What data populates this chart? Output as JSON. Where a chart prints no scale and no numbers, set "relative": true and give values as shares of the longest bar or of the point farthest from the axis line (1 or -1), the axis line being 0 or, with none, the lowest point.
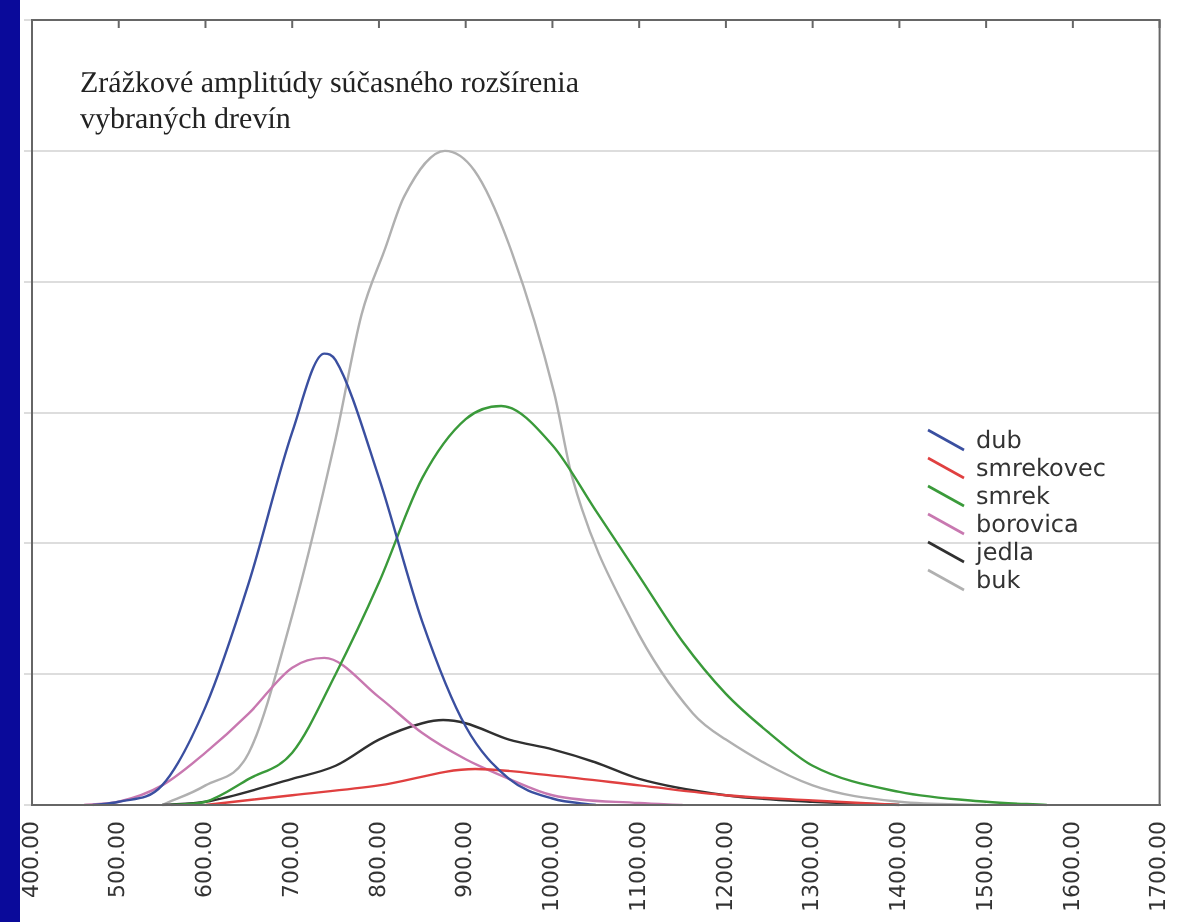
{
  "chart_data": {
    "type": "line",
    "title": "Zrážkové amplitúdy súčasného rozšírenia vybraných drevín",
    "relative": true,
    "xlim": [
      400,
      1700
    ],
    "xticks": [
      {
        "value": 400,
        "label": "400.00"
      },
      {
        "value": 500,
        "label": "500.00"
      },
      {
        "value": 600,
        "label": "600.00"
      },
      {
        "value": 700,
        "label": "700.00"
      },
      {
        "value": 800,
        "label": "800.00"
      },
      {
        "value": 900,
        "label": "900.00"
      },
      {
        "value": 1000,
        "label": "1000.00"
      },
      {
        "value": 1100,
        "label": "1100.00"
      },
      {
        "value": 1200,
        "label": "1200.00"
      },
      {
        "value": 1300,
        "label": "1300.00"
      },
      {
        "value": 1400,
        "label": "1400.00"
      },
      {
        "value": 1500,
        "label": "1500.00"
      },
      {
        "value": 1600,
        "label": "1600.00"
      },
      {
        "value": 1700,
        "label": "1700.00"
      }
    ],
    "grid": "y",
    "legend": "right",
    "marker": "none",
    "line_style": "solid",
    "series": [
      {
        "name": "dub",
        "color": "#3a4fa0",
        "x": [
          470,
          500,
          550,
          600,
          650,
          700,
          737,
          750,
          800,
          850,
          900,
          950,
          1000,
          1050
        ],
        "values": [
          0,
          0.005,
          0.03,
          0.15,
          0.34,
          0.57,
          0.69,
          0.68,
          0.5,
          0.28,
          0.12,
          0.04,
          0.01,
          0
        ]
      },
      {
        "name": "smrekovec",
        "color": "#e04040",
        "x": [
          600,
          700,
          800,
          911,
          1000,
          1100,
          1200,
          1300,
          1400
        ],
        "values": [
          0,
          0.015,
          0.03,
          0.055,
          0.045,
          0.03,
          0.015,
          0.007,
          0
        ]
      },
      {
        "name": "smrek",
        "color": "#3a9a3a",
        "x": [
          560,
          600,
          650,
          700,
          750,
          800,
          850,
          900,
          941,
          1000,
          1050,
          1100,
          1150,
          1200,
          1250,
          1300,
          1400,
          1500,
          1570
        ],
        "values": [
          0,
          0.005,
          0.04,
          0.08,
          0.2,
          0.34,
          0.5,
          0.59,
          0.61,
          0.55,
          0.45,
          0.35,
          0.25,
          0.17,
          0.11,
          0.06,
          0.02,
          0.005,
          0
        ]
      },
      {
        "name": "borovica",
        "color": "#c878b0",
        "x": [
          460,
          500,
          550,
          600,
          650,
          700,
          737,
          800,
          850,
          900,
          950,
          1000,
          1100,
          1150
        ],
        "values": [
          0,
          0.005,
          0.03,
          0.08,
          0.14,
          0.21,
          0.225,
          0.165,
          0.11,
          0.07,
          0.04,
          0.015,
          0.003,
          0
        ]
      },
      {
        "name": "jedla",
        "color": "#303030",
        "x": [
          550,
          600,
          700,
          750,
          800,
          850,
          874,
          900,
          950,
          1000,
          1050,
          1100,
          1200,
          1300,
          1400
        ],
        "values": [
          0,
          0.005,
          0.04,
          0.06,
          0.1,
          0.125,
          0.13,
          0.125,
          0.1,
          0.085,
          0.065,
          0.04,
          0.015,
          0.005,
          0
        ]
      },
      {
        "name": "buk",
        "color": "#b0b0b0",
        "x": [
          550,
          600,
          650,
          700,
          750,
          780,
          807,
          829,
          876,
          910,
          949,
          1002,
          1023,
          1092,
          1162,
          1200,
          1300,
          1400,
          1500
        ],
        "values": [
          0,
          0.03,
          0.08,
          0.29,
          0.56,
          0.75,
          0.85,
          0.93,
          1,
          0.97,
          0.86,
          0.63,
          0.5,
          0.28,
          0.14,
          0.1,
          0.03,
          0.005,
          0
        ]
      }
    ]
  }
}
